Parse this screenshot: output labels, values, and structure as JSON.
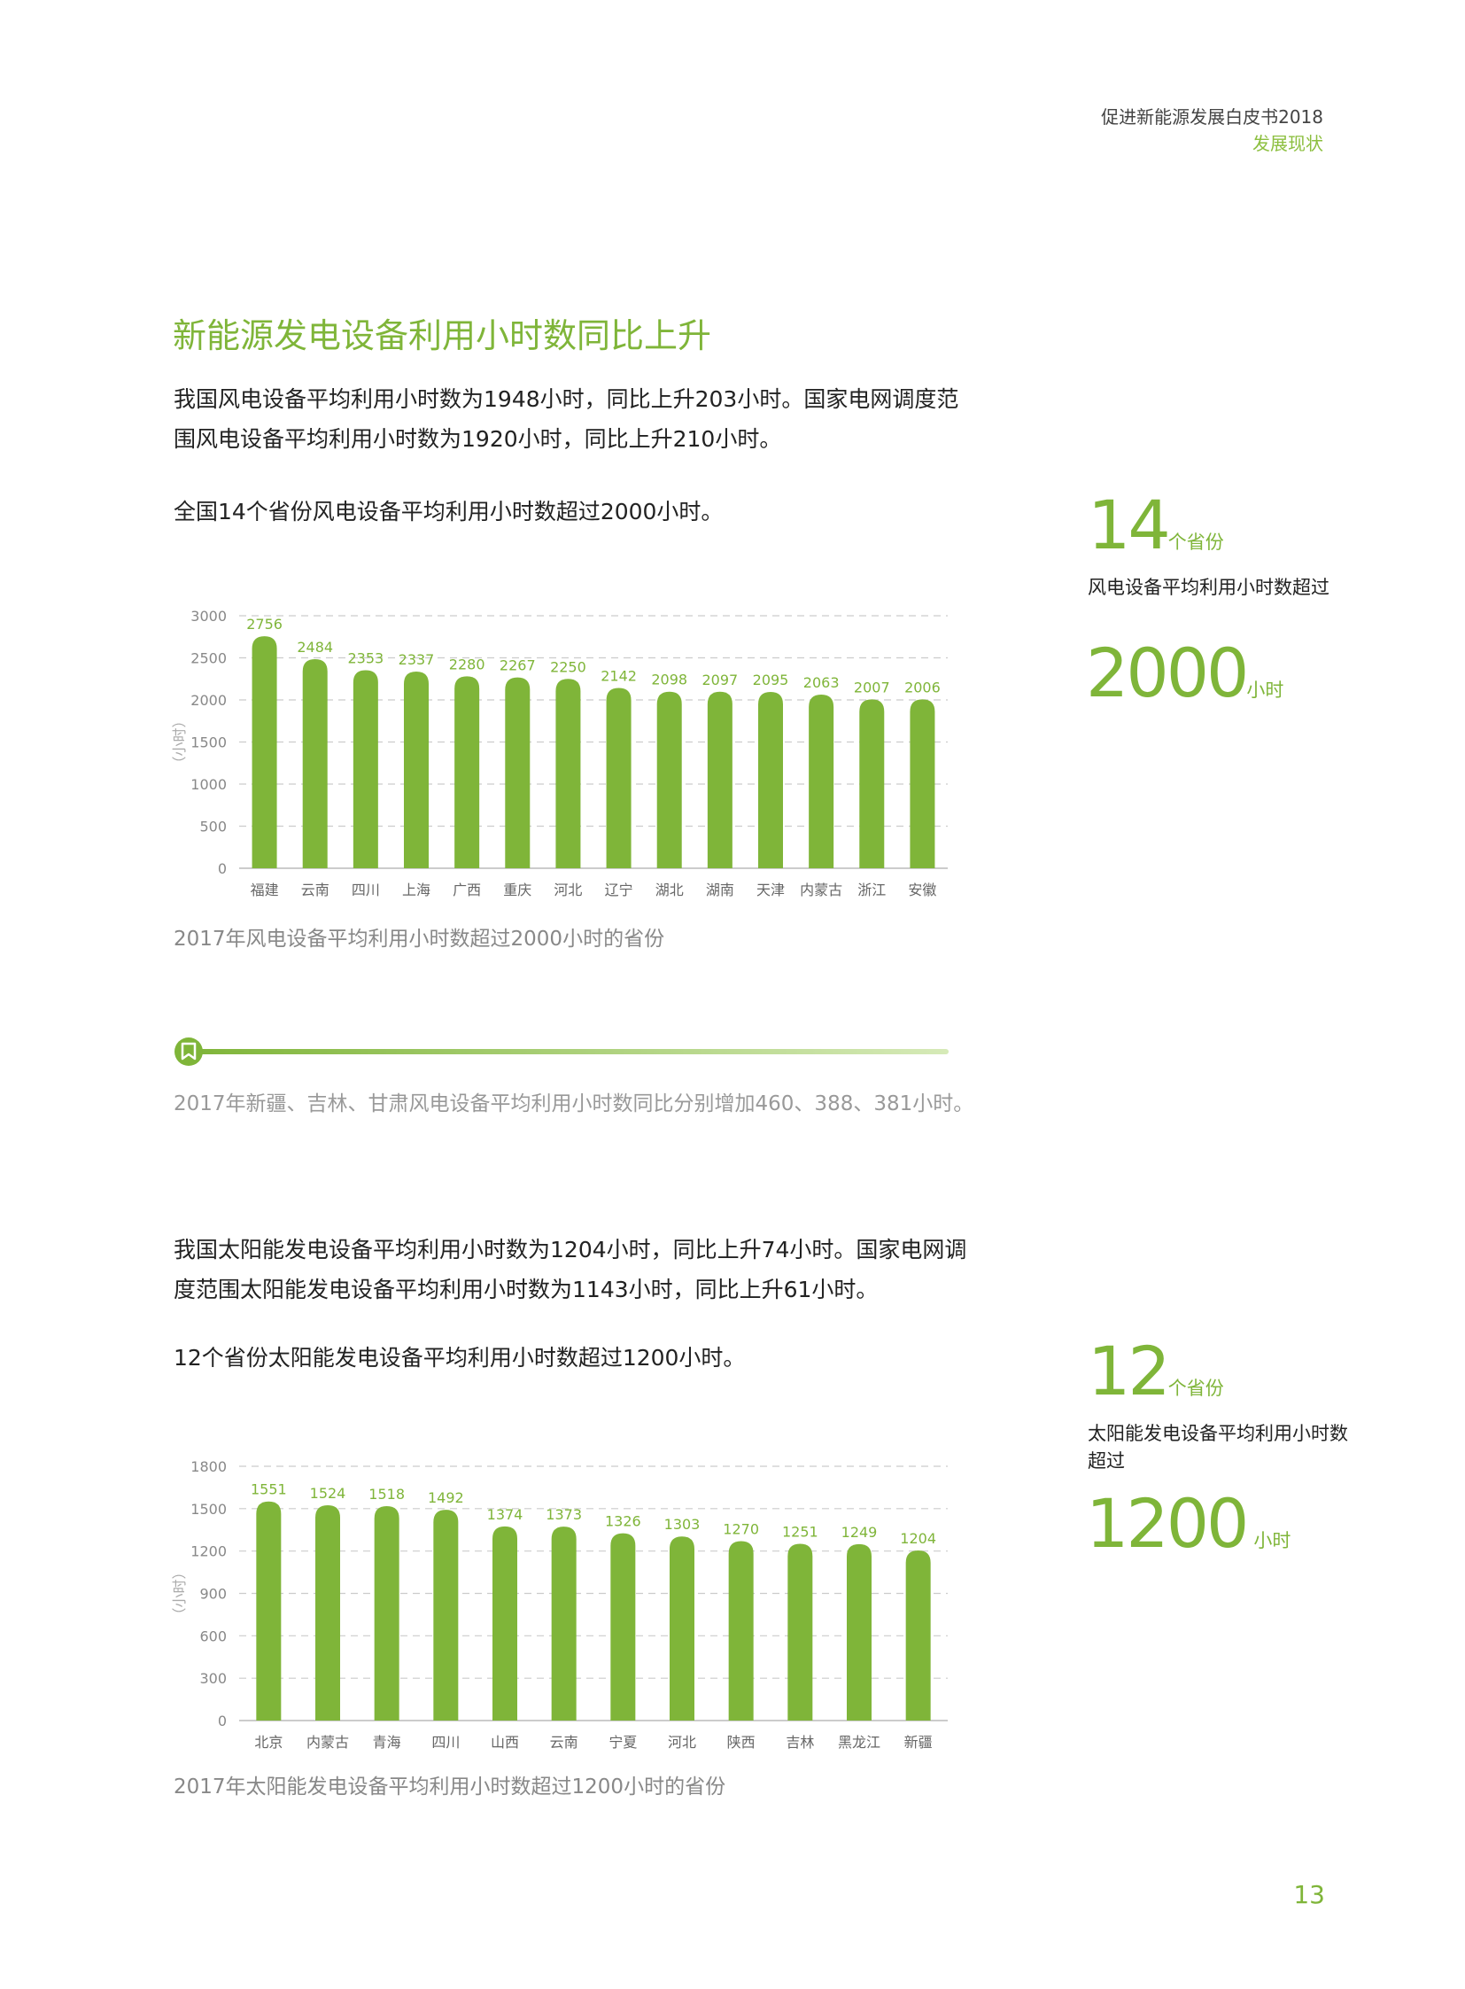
{
  "header": {
    "title": "促进新能源发展白皮书2018",
    "subtitle": "发展现状"
  },
  "section_title": "新能源发电设备利用小时数同比上升",
  "wind": {
    "paragraph": "我国风电设备平均利用小时数为1948小时，同比上升203小时。国家电网调度范围风电设备平均利用小时数为1920小时，同比上升210小时。",
    "paragraph2": "全国14个省份风电设备平均利用小时数超过2000小时。",
    "caption": "2017年风电设备平均利用小时数超过2000小时的省份",
    "note": "2017年新疆、吉林、甘肃风电设备平均利用小时数同比分别增加460、388、381小时。",
    "side": {
      "count": "14",
      "count_unit": "个省份",
      "desc": "风电设备平均利用小时数超过",
      "threshold": "2000",
      "threshold_unit": "小时"
    }
  },
  "solar": {
    "paragraph": "我国太阳能发电设备平均利用小时数为1204小时，同比上升74小时。国家电网调度范围太阳能发电设备平均利用小时数为1143小时，同比上升61小时。",
    "paragraph2": "12个省份太阳能发电设备平均利用小时数超过1200小时。",
    "caption": "2017年太阳能发电设备平均利用小时数超过1200小时的省份",
    "side": {
      "count": "12",
      "count_unit": "个省份",
      "desc": "太阳能发电设备平均利用小时数超过",
      "threshold": "1200",
      "threshold_unit": "小时"
    }
  },
  "page_number": "13",
  "colors": {
    "accent": "#7fb539",
    "bar": "#7fb539",
    "grid": "#cccccc"
  },
  "chart_data": [
    {
      "type": "bar",
      "categories": [
        "福建",
        "云南",
        "四川",
        "上海",
        "广西",
        "重庆",
        "河北",
        "辽宁",
        "湖北",
        "湖南",
        "天津",
        "内蒙古",
        "浙江",
        "安徽"
      ],
      "values": [
        2756,
        2484,
        2353,
        2337,
        2280,
        2267,
        2250,
        2142,
        2098,
        2097,
        2095,
        2063,
        2007,
        2006
      ],
      "ylabel": "（小时）",
      "ylim": [
        0,
        3000
      ],
      "yticks": [
        "0",
        "500",
        "1000",
        "1500",
        "2000",
        "2500",
        "3000"
      ],
      "grid": true
    },
    {
      "type": "bar",
      "categories": [
        "北京",
        "内蒙古",
        "青海",
        "四川",
        "山西",
        "云南",
        "宁夏",
        "河北",
        "陕西",
        "吉林",
        "黑龙江",
        "新疆"
      ],
      "values": [
        1551,
        1524,
        1518,
        1492,
        1374,
        1373,
        1326,
        1303,
        1270,
        1251,
        1249,
        1204
      ],
      "ylabel": "（小时）",
      "ylim": [
        0,
        1800
      ],
      "yticks": [
        "0",
        "300",
        "600",
        "900",
        "1200",
        "1500",
        "1800"
      ],
      "grid": true
    }
  ]
}
